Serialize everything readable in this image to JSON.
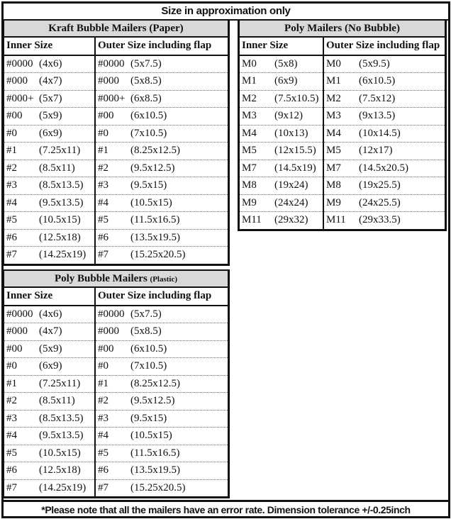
{
  "title": "Size in approximation only",
  "footer": "*Please note that all the mailers have an error rate. Dimension tolerance +/-0.25inch",
  "kraft": {
    "title": "Kraft Bubble Mailers (Paper)",
    "headers": [
      "Inner Size",
      "Outer Size including flap"
    ],
    "rows": [
      [
        "#0000",
        "(4x6)",
        "#0000",
        "(5x7.5)"
      ],
      [
        "#000",
        "(4x7)",
        "#000",
        "(5x8.5)"
      ],
      [
        "#000+",
        "(5x7)",
        "#000+",
        "(6x8.5)"
      ],
      [
        "#00",
        "(5x9)",
        "#00",
        "(6x10.5)"
      ],
      [
        "#0",
        "(6x9)",
        "#0",
        "(7x10.5)"
      ],
      [
        "#1",
        "(7.25x11)",
        "#1",
        "(8.25x12.5)"
      ],
      [
        "#2",
        "(8.5x11)",
        "#2",
        "(9.5x12.5)"
      ],
      [
        "#3",
        "(8.5x13.5)",
        "#3",
        "(9.5x15)"
      ],
      [
        "#4",
        "(9.5x13.5)",
        "#4",
        "(10.5x15)"
      ],
      [
        "#5",
        "(10.5x15)",
        "#5",
        "(11.5x16.5)"
      ],
      [
        "#6",
        "(12.5x18)",
        "#6",
        "(13.5x19.5)"
      ],
      [
        "#7",
        "(14.25x19)",
        "#7",
        "(15.25x20.5)"
      ]
    ]
  },
  "poly": {
    "title": "Poly Mailers (No Bubble)",
    "headers": [
      "Inner Size",
      "Outer Size including flap"
    ],
    "rows": [
      [
        "M0",
        "(5x8)",
        "M0",
        "(5x9.5)"
      ],
      [
        "M1",
        "(6x9)",
        "M1",
        "(6x10.5)"
      ],
      [
        "M2",
        "(7.5x10.5)",
        "M2",
        "(7.5x12)"
      ],
      [
        "M3",
        "(9x12)",
        "M3",
        "(9x13.5)"
      ],
      [
        "M4",
        "(10x13)",
        "M4",
        "(10x14.5)"
      ],
      [
        "M5",
        "(12x15.5)",
        "M5",
        "(12x17)"
      ],
      [
        "M7",
        "(14.5x19)",
        "M7",
        "(14.5x20.5)"
      ],
      [
        "M8",
        "(19x24)",
        "M8",
        "(19x25.5)"
      ],
      [
        "M9",
        "(24x24)",
        "M9",
        "(24x25.5)"
      ],
      [
        "M11",
        "(29x32)",
        "M11",
        "(29x33.5)"
      ]
    ]
  },
  "bubble": {
    "title": "Poly Bubble Mailers",
    "title_suffix": "(Plastic)",
    "headers": [
      "Inner Size",
      "Outer Size including flap"
    ],
    "rows": [
      [
        "#0000",
        "(4x6)",
        "#0000",
        "(5x7.5)"
      ],
      [
        "#000",
        "(4x7)",
        "#000",
        "(5x8.5)"
      ],
      [
        "#00",
        "(5x9)",
        "#00",
        "(6x10.5)"
      ],
      [
        "#0",
        "(6x9)",
        "#0",
        "(7x10.5)"
      ],
      [
        "#1",
        "(7.25x11)",
        "#1",
        "(8.25x12.5)"
      ],
      [
        "#2",
        "(8.5x11)",
        "#2",
        "(9.5x12.5)"
      ],
      [
        "#3",
        "(8.5x13.5)",
        "#3",
        "(9.5x15)"
      ],
      [
        "#4",
        "(9.5x13.5)",
        "#4",
        "(10.5x15)"
      ],
      [
        "#5",
        "(10.5x15)",
        "#5",
        "(11.5x16.5)"
      ],
      [
        "#6",
        "(12.5x18)",
        "#6",
        "(13.5x19.5)"
      ],
      [
        "#7",
        "(14.25x19)",
        "#7",
        "(15.25x20.5)"
      ]
    ]
  }
}
